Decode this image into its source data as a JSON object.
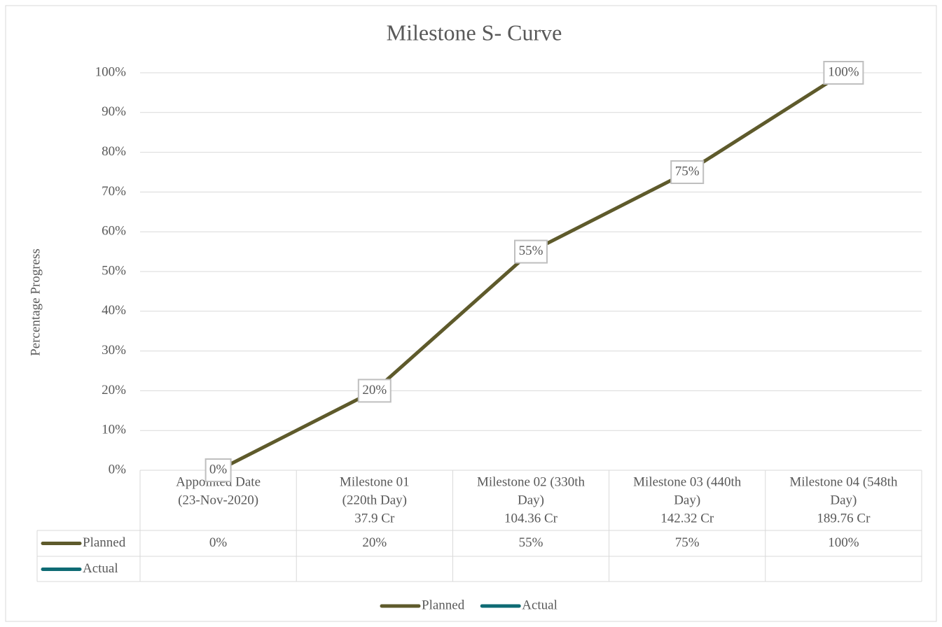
{
  "chart_data": {
    "type": "line",
    "title": "Milestone S- Curve",
    "y_label": "Percentage Progress",
    "categories": [
      [
        "Appointed Date",
        "(23-Nov-2020)"
      ],
      [
        "Milestone 01",
        "(220th Day)",
        "37.9 Cr"
      ],
      [
        "Milestone 02 (330th",
        "Day)",
        "104.36 Cr"
      ],
      [
        "Milestone 03 (440th",
        "Day)",
        "142.32 Cr"
      ],
      [
        "Milestone 04 (548th",
        "Day)",
        "189.76 Cr"
      ]
    ],
    "series": [
      {
        "name": "Planned",
        "color": "#5e5a2b",
        "values": [
          0,
          20,
          55,
          75,
          100
        ],
        "value_labels": [
          "0%",
          "20%",
          "55%",
          "75%",
          "100%"
        ]
      },
      {
        "name": "Actual",
        "color": "#0e6b74",
        "values": [
          null,
          null,
          null,
          null,
          null
        ]
      }
    ],
    "ylim": [
      0,
      100
    ],
    "yticks": [
      {
        "value": 0,
        "label": "0%"
      },
      {
        "value": 10,
        "label": "10%"
      },
      {
        "value": 20,
        "label": "20%"
      },
      {
        "value": 30,
        "label": "30%"
      },
      {
        "value": 40,
        "label": "40%"
      },
      {
        "value": 50,
        "label": "50%"
      },
      {
        "value": 60,
        "label": "60%"
      },
      {
        "value": 70,
        "label": "70%"
      },
      {
        "value": 80,
        "label": "80%"
      },
      {
        "value": 90,
        "label": "90%"
      },
      {
        "value": 100,
        "label": "100%"
      }
    ],
    "grid": true,
    "legend": "bottom",
    "data_table": true
  }
}
